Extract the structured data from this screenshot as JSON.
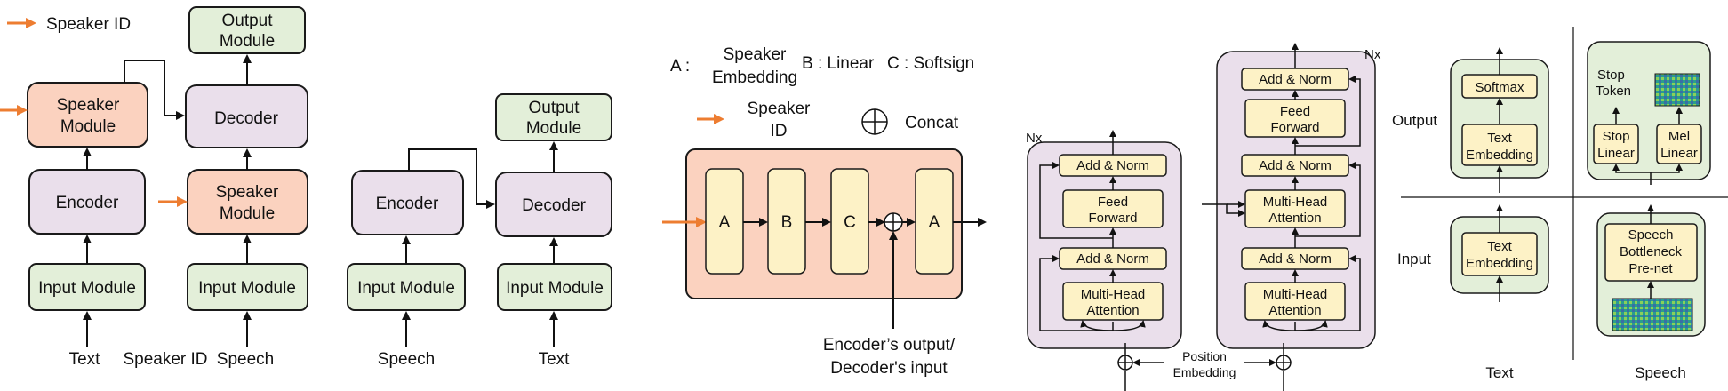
{
  "colors": {
    "green": "#e3efd9",
    "purple": "#eadfeb",
    "salmon": "#fbd2bf",
    "yellow": "#fdf2c6",
    "orange_arrow": "#ed7d31",
    "outline": "#1a1a1a"
  },
  "legend_a": {
    "speaker_id": "Speaker ID"
  },
  "diagram_a": {
    "output_module": [
      "Output",
      "Module"
    ],
    "speaker_module": [
      "Speaker",
      "Module"
    ],
    "decoder": "Decoder",
    "encoder": "Encoder",
    "input_module": "Input Module",
    "label_text": "Text",
    "label_speaker_id": "Speaker ID",
    "label_speech": "Speech"
  },
  "diagram_b": {
    "encoder": "Encoder",
    "decoder": "Decoder",
    "output_module": [
      "Output",
      "Module"
    ],
    "input_module": "Input Module",
    "label_speech": "Speech",
    "label_text": "Text"
  },
  "speaker_module_detail": {
    "legend_a_key": "A :",
    "legend_a_value": [
      "Speaker",
      "Embedding"
    ],
    "legend_b": "B : Linear",
    "legend_c": "C : Softsign",
    "legend_speaker_id": [
      "Speaker",
      "ID"
    ],
    "legend_concat": "Concat",
    "blocks": [
      "A",
      "B",
      "C",
      "A"
    ],
    "bottom_label": [
      "Encoder’s output/",
      "Decoder's input"
    ]
  },
  "transformer": {
    "encoder_nx": "Nx",
    "decoder_nx": "Nx",
    "add_norm": "Add & Norm",
    "feed_forward": [
      "Feed",
      "Forward"
    ],
    "multi_head": [
      "Multi-Head",
      "Attention"
    ],
    "position_embedding": [
      "Position",
      "Embedding"
    ]
  },
  "prenets": {
    "row_output": "Output",
    "row_input": "Input",
    "softmax": "Softmax",
    "text_embedding": [
      "Text",
      "Embedding"
    ],
    "stop_token": [
      "Stop",
      "Token"
    ],
    "stop_linear": [
      "Stop",
      "Linear"
    ],
    "mel_linear": [
      "Mel",
      "Linear"
    ],
    "speech_prenet": [
      "Speech",
      "Bottleneck",
      "Pre-net"
    ],
    "col_text": "Text",
    "col_speech": "Speech"
  }
}
